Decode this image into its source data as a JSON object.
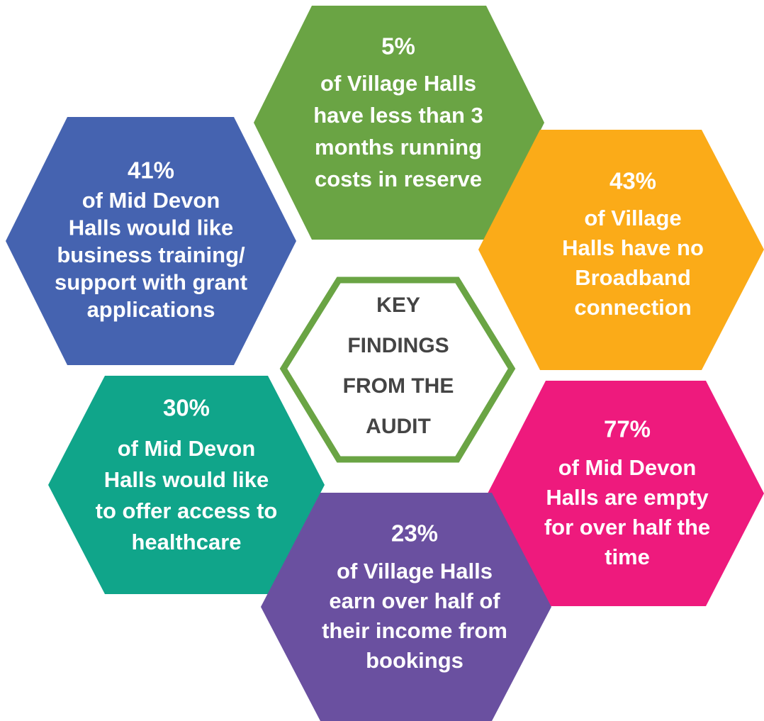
{
  "center": {
    "lines": [
      "KEY",
      "FINDINGS",
      "FROM THE",
      "AUDIT"
    ]
  },
  "findings": [
    {
      "stat": "5%",
      "lines": [
        "of Village Halls",
        "have less than 3",
        "months running",
        "costs in reserve"
      ],
      "color": "#6aa444"
    },
    {
      "stat": "41%",
      "lines": [
        "of Mid Devon",
        "Halls would like",
        "business training/",
        "support with grant",
        "applications"
      ],
      "color": "#4563b0"
    },
    {
      "stat": "43%",
      "lines": [
        "of Village",
        "Halls have no",
        "Broadband",
        "connection"
      ],
      "color": "#fbab18"
    },
    {
      "stat": "30%",
      "lines": [
        "of Mid Devon",
        "Halls would like",
        "to offer access to",
        "healthcare"
      ],
      "color": "#10a58a"
    },
    {
      "stat": "77%",
      "lines": [
        "of Mid Devon",
        "Halls are empty",
        "for over half the",
        "time"
      ],
      "color": "#ee1a7d"
    },
    {
      "stat": "23%",
      "lines": [
        "of Village Halls",
        "earn over half of",
        "their income from",
        "bookings"
      ],
      "color": "#6a50a0"
    }
  ]
}
